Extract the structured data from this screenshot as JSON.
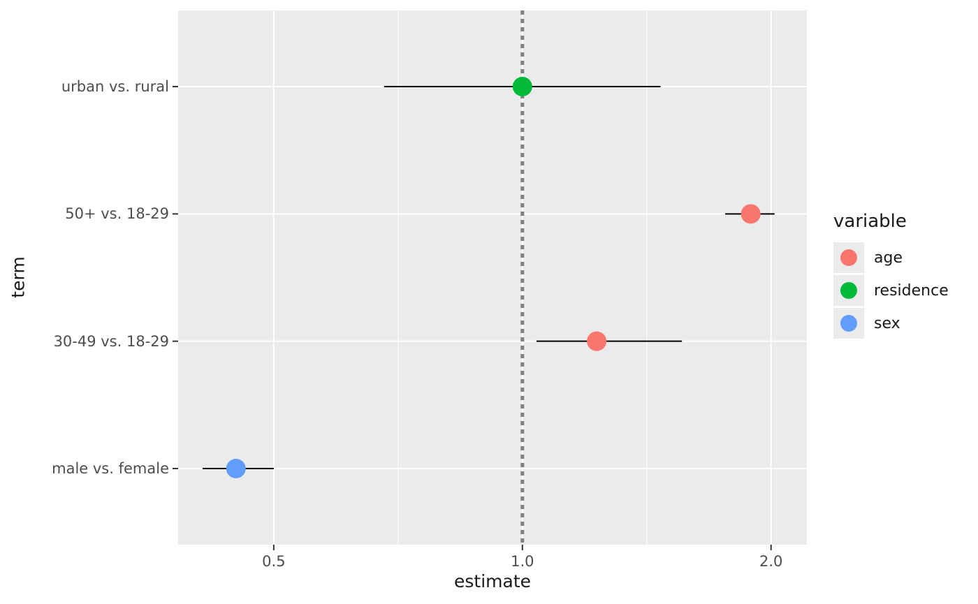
{
  "chart_data": {
    "type": "scatter",
    "title": "",
    "xlabel": "estimate",
    "ylabel": "term",
    "x_scale": "log2",
    "xlim": [
      0.383,
      2.21
    ],
    "x_ticks": [
      0.5,
      1.0,
      2.0
    ],
    "x_tick_labels": [
      "0.5",
      "1.0",
      "2.0"
    ],
    "grid": true,
    "panel_background": "#EBEBEB",
    "grid_color": "#FFFFFF",
    "reference_line": {
      "x": 1.0,
      "style": "dotted",
      "color": "#7F7F7F"
    },
    "categories": [
      "urban vs. rural",
      "50+ vs. 18-29",
      "30-49 vs. 18-29",
      "male vs. female"
    ],
    "points": [
      {
        "term": "urban vs. rural",
        "variable": "residence",
        "estimate": 1.0,
        "conf_low": 0.68,
        "conf_high": 1.47
      },
      {
        "term": "50+ vs. 18-29",
        "variable": "age",
        "estimate": 1.89,
        "conf_low": 1.76,
        "conf_high": 2.02
      },
      {
        "term": "30-49 vs. 18-29",
        "variable": "age",
        "estimate": 1.23,
        "conf_low": 1.04,
        "conf_high": 1.56
      },
      {
        "term": "male vs. female",
        "variable": "sex",
        "estimate": 0.45,
        "conf_low": 0.41,
        "conf_high": 0.5
      }
    ],
    "colors": {
      "age": "#F8766D",
      "residence": "#00BA38",
      "sex": "#619CFF"
    },
    "legend": {
      "title": "variable",
      "position": "right",
      "entries": [
        {
          "label": "age",
          "color": "#F8766D"
        },
        {
          "label": "residence",
          "color": "#00BA38"
        },
        {
          "label": "sex",
          "color": "#619CFF"
        }
      ]
    }
  }
}
